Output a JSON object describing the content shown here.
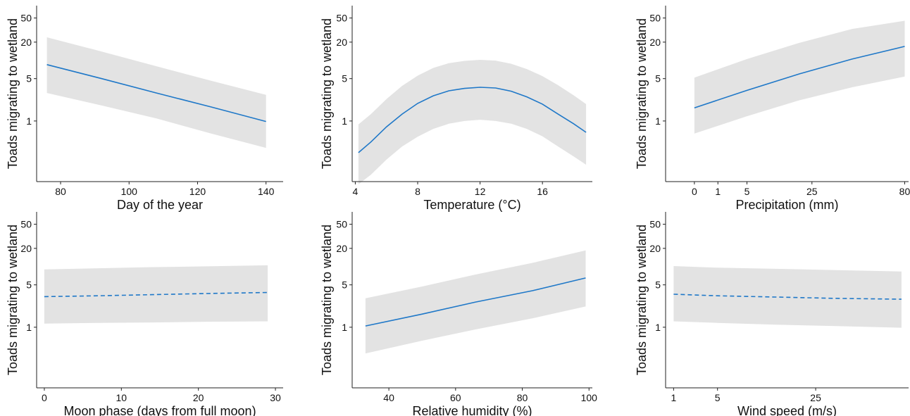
{
  "y_axis_label": "Toads migrating to wetland",
  "chart_data": [
    {
      "type": "line",
      "xlabel": "Day of the year",
      "ylabel": "Toads migrating to wetland",
      "x_scale": "linear",
      "y_scale": "log",
      "x_range": [
        73,
        145
      ],
      "xticks": [
        80,
        100,
        120,
        140
      ],
      "xtick_labels": [
        "80",
        "100",
        "120",
        "140"
      ],
      "ylim": [
        0.1,
        80
      ],
      "yticks": [
        1,
        5,
        20,
        50
      ],
      "ytick_labels": [
        "1",
        "5",
        "20",
        "50"
      ],
      "grid": false,
      "line_style": "solid",
      "line_color": "#1f78c8",
      "band_color": "#e3e3e3",
      "series": [
        {
          "x": [
            76,
            92,
            108,
            124,
            140
          ],
          "y": [
            8.5,
            5.0,
            2.9,
            1.7,
            0.98
          ],
          "lower": [
            2.9,
            1.8,
            1.1,
            0.62,
            0.36
          ],
          "upper": [
            24,
            14,
            8.0,
            4.6,
            2.7
          ]
        }
      ]
    },
    {
      "type": "line",
      "xlabel": "Temperature (°C)",
      "ylabel": "Toads migrating to wetland",
      "x_scale": "linear",
      "y_scale": "log",
      "x_range": [
        3.8,
        19.2
      ],
      "xticks": [
        4,
        8,
        12,
        16
      ],
      "xtick_labels": [
        "4",
        "8",
        "12",
        "16"
      ],
      "ylim": [
        0.1,
        80
      ],
      "yticks": [
        1,
        5,
        20,
        50
      ],
      "ytick_labels": [
        "1",
        "5",
        "20",
        "50"
      ],
      "grid": false,
      "line_style": "solid",
      "line_color": "#1f78c8",
      "band_color": "#e3e3e3",
      "series": [
        {
          "x": [
            4.2,
            5,
            6,
            7,
            8,
            9,
            10,
            11,
            12,
            13,
            14,
            15,
            16,
            17,
            18,
            18.8
          ],
          "y": [
            0.3,
            0.45,
            0.8,
            1.3,
            1.95,
            2.6,
            3.15,
            3.45,
            3.6,
            3.5,
            3.1,
            2.5,
            1.9,
            1.3,
            0.9,
            0.65
          ],
          "lower": [
            0.09,
            0.13,
            0.23,
            0.38,
            0.55,
            0.74,
            0.9,
            1.0,
            1.05,
            1.0,
            0.9,
            0.74,
            0.56,
            0.38,
            0.26,
            0.19
          ],
          "upper": [
            0.88,
            1.3,
            2.3,
            3.8,
            5.6,
            7.5,
            9.0,
            9.8,
            10.2,
            9.9,
            8.8,
            7.2,
            5.5,
            3.9,
            2.65,
            1.9
          ]
        }
      ]
    },
    {
      "type": "line",
      "xlabel": "Precipitation (mm)",
      "ylabel": "Toads migrating to wetland",
      "x_scale": "sqrt",
      "y_scale": "log",
      "x_range": [
        -1.5,
        83
      ],
      "xticks": [
        0,
        1,
        5,
        25,
        80
      ],
      "xtick_labels": [
        "0",
        "1",
        "5",
        "25",
        "80"
      ],
      "ylim": [
        0.1,
        80
      ],
      "yticks": [
        1,
        5,
        20,
        50
      ],
      "ytick_labels": [
        "1",
        "5",
        "20",
        "50"
      ],
      "grid": false,
      "line_style": "solid",
      "line_color": "#1f78c8",
      "band_color": "#e3e3e3",
      "series": [
        {
          "x": [
            0,
            5,
            20,
            45,
            80
          ],
          "y": [
            1.65,
            3.2,
            6.0,
            10.5,
            17
          ],
          "lower": [
            0.62,
            1.2,
            2.2,
            3.6,
            5.4
          ],
          "upper": [
            5.2,
            10.5,
            19.5,
            33,
            45
          ]
        }
      ]
    },
    {
      "type": "line",
      "xlabel": "Moon phase (days from full moon)",
      "ylabel": "Toads migrating to wetland",
      "x_scale": "linear",
      "y_scale": "log",
      "x_range": [
        -1,
        31
      ],
      "xticks": [
        0,
        10,
        20,
        30
      ],
      "xtick_labels": [
        "0",
        "10",
        "20",
        "30"
      ],
      "ylim": [
        0.1,
        80
      ],
      "yticks": [
        1,
        5,
        20,
        50
      ],
      "ytick_labels": [
        "1",
        "5",
        "20",
        "50"
      ],
      "grid": false,
      "line_style": "dashed",
      "line_color": "#1f78c8",
      "band_color": "#e3e3e3",
      "series": [
        {
          "x": [
            0,
            7,
            14,
            21,
            29
          ],
          "y": [
            3.2,
            3.3,
            3.45,
            3.6,
            3.75
          ],
          "lower": [
            1.15,
            1.18,
            1.2,
            1.23,
            1.25
          ],
          "upper": [
            9.0,
            9.4,
            9.8,
            10.1,
            10.5
          ]
        }
      ]
    },
    {
      "type": "line",
      "xlabel": "Relative humidity (%)",
      "ylabel": "Toads migrating to wetland",
      "x_scale": "linear",
      "y_scale": "log",
      "x_range": [
        29,
        101
      ],
      "xticks": [
        40,
        60,
        80,
        100
      ],
      "xtick_labels": [
        "40",
        "60",
        "80",
        "100"
      ],
      "ylim": [
        0.1,
        80
      ],
      "yticks": [
        1,
        5,
        20,
        50
      ],
      "ytick_labels": [
        "1",
        "5",
        "20",
        "50"
      ],
      "grid": false,
      "line_style": "solid",
      "line_color": "#1f78c8",
      "band_color": "#e3e3e3",
      "series": [
        {
          "x": [
            33,
            50,
            66,
            83,
            99
          ],
          "y": [
            1.05,
            1.65,
            2.6,
            4.0,
            6.5
          ],
          "lower": [
            0.37,
            0.6,
            0.92,
            1.4,
            2.2
          ],
          "upper": [
            3.0,
            4.7,
            7.4,
            11.5,
            18.5
          ]
        }
      ]
    },
    {
      "type": "line",
      "xlabel": "Wind speed (m/s)",
      "ylabel": "Toads migrating to wetland",
      "x_scale": "sqrt",
      "y_scale": "log",
      "x_range": [
        0.6,
        58
      ],
      "xticks": [
        1,
        5,
        25
      ],
      "xtick_labels": [
        "1",
        "5",
        "25"
      ],
      "ylim": [
        0.1,
        80
      ],
      "yticks": [
        1,
        5,
        20,
        50
      ],
      "ytick_labels": [
        "1",
        "5",
        "20",
        "50"
      ],
      "grid": false,
      "line_style": "dashed",
      "line_color": "#1f78c8",
      "band_color": "#e3e3e3",
      "series": [
        {
          "x": [
            1,
            5,
            15,
            30,
            55
          ],
          "y": [
            3.5,
            3.3,
            3.15,
            3.0,
            2.9
          ],
          "lower": [
            1.25,
            1.18,
            1.1,
            1.05,
            0.98
          ],
          "upper": [
            10.2,
            9.6,
            9.2,
            8.8,
            8.3
          ]
        }
      ]
    }
  ]
}
